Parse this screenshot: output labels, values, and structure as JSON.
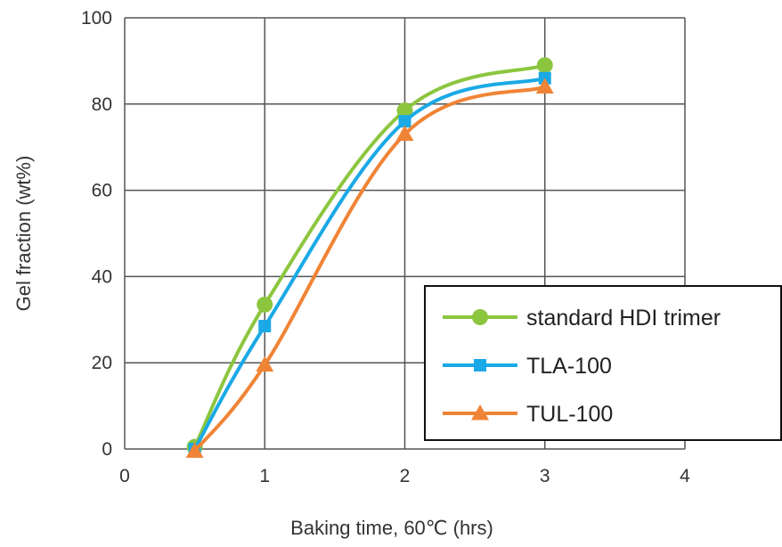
{
  "chart_data": {
    "type": "line",
    "xlabel": "Baking time, 60℃ (hrs)",
    "ylabel": "Gel fraction (wt%)",
    "xlim": [
      0,
      4
    ],
    "ylim": [
      0,
      100
    ],
    "xticks": [
      0,
      1,
      2,
      3,
      4
    ],
    "yticks": [
      0,
      20,
      40,
      60,
      80,
      100
    ],
    "grid": true,
    "legend_position": "bottom-right",
    "series": [
      {
        "name": "standard HDI trimer",
        "color": "#8cc63f",
        "marker": "circle",
        "x": [
          0.5,
          1,
          2,
          3
        ],
        "y": [
          0.5,
          33.5,
          78.5,
          89
        ]
      },
      {
        "name": "TLA-100",
        "color": "#1aa9e6",
        "marker": "square",
        "x": [
          0.5,
          1,
          2,
          3
        ],
        "y": [
          0,
          28.5,
          76,
          86
        ]
      },
      {
        "name": "TUL-100",
        "color": "#f08436",
        "marker": "triangle",
        "x": [
          0.5,
          1,
          2,
          3
        ],
        "y": [
          -0.5,
          19.5,
          73,
          84
        ]
      }
    ]
  }
}
